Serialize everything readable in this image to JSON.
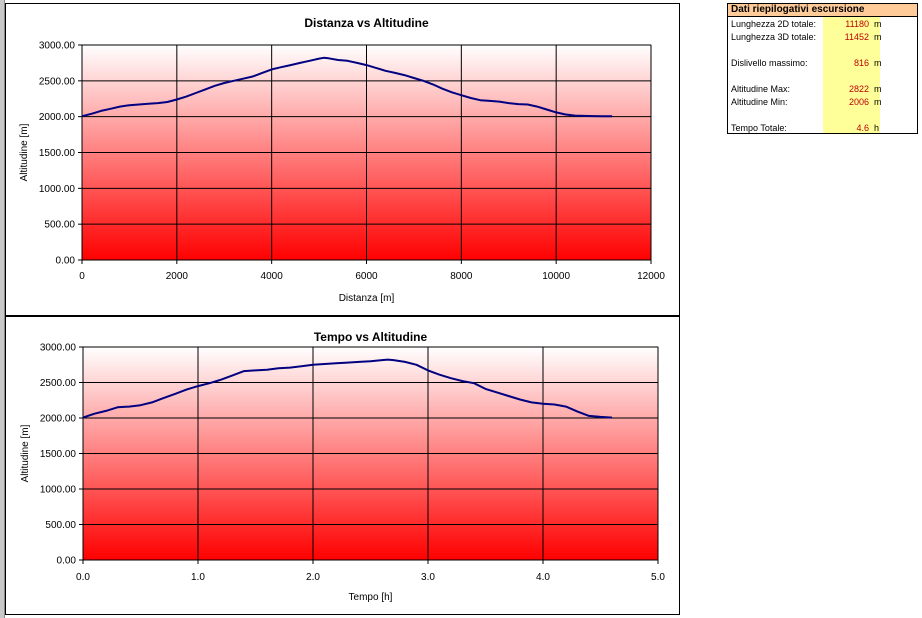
{
  "chart_data": [
    {
      "type": "line",
      "title": "Distanza vs Altitudine",
      "xlabel": "Distanza [m]",
      "ylabel": "Altitudine [m]",
      "xlim": [
        0,
        12000
      ],
      "ylim": [
        0,
        3000
      ],
      "x_ticks": [
        "0",
        "2000",
        "4000",
        "6000",
        "8000",
        "10000",
        "12000"
      ],
      "y_ticks": [
        "0.00",
        "500.00",
        "1000.00",
        "1500.00",
        "2000.00",
        "2500.00",
        "3000.00"
      ],
      "grid": true,
      "series": [
        {
          "x": [
            0,
            200,
            400,
            600,
            800,
            1000,
            1200,
            1400,
            1600,
            1800,
            2000,
            2200,
            2400,
            2600,
            2800,
            3000,
            3200,
            3400,
            3600,
            3800,
            4000,
            4200,
            4400,
            4600,
            4800,
            5000,
            5100,
            5200,
            5400,
            5600,
            5800,
            6000,
            6200,
            6400,
            6600,
            6800,
            7000,
            7200,
            7400,
            7600,
            7800,
            8000,
            8200,
            8400,
            8600,
            8800,
            9000,
            9200,
            9400,
            9600,
            9800,
            10000,
            10200,
            10400,
            10600,
            10800,
            11000,
            11180
          ],
          "y": [
            2006,
            2040,
            2080,
            2110,
            2140,
            2160,
            2170,
            2180,
            2190,
            2205,
            2240,
            2280,
            2330,
            2380,
            2430,
            2470,
            2500,
            2530,
            2560,
            2610,
            2660,
            2690,
            2720,
            2750,
            2780,
            2810,
            2822,
            2815,
            2790,
            2780,
            2750,
            2720,
            2680,
            2640,
            2610,
            2580,
            2540,
            2500,
            2450,
            2390,
            2340,
            2300,
            2260,
            2230,
            2220,
            2210,
            2190,
            2175,
            2170,
            2140,
            2100,
            2060,
            2030,
            2015,
            2010,
            2008,
            2006,
            2006
          ],
          "color": "#000080"
        }
      ]
    },
    {
      "type": "line",
      "title": "Tempo vs Altitudine",
      "xlabel": "Tempo [h]",
      "ylabel": "Altitudine [m]",
      "xlim": [
        0,
        5
      ],
      "ylim": [
        0,
        3000
      ],
      "x_ticks": [
        "0.0",
        "1.0",
        "2.0",
        "3.0",
        "4.0",
        "5.0"
      ],
      "y_ticks": [
        "0.00",
        "500.00",
        "1000.00",
        "1500.00",
        "2000.00",
        "2500.00",
        "3000.00"
      ],
      "grid": true,
      "series": [
        {
          "x": [
            0,
            0.1,
            0.2,
            0.3,
            0.4,
            0.5,
            0.6,
            0.7,
            0.8,
            0.9,
            1.0,
            1.1,
            1.2,
            1.3,
            1.4,
            1.5,
            1.6,
            1.7,
            1.8,
            1.9,
            2.0,
            2.1,
            2.2,
            2.3,
            2.4,
            2.5,
            2.6,
            2.65,
            2.7,
            2.8,
            2.9,
            3.0,
            3.1,
            3.2,
            3.3,
            3.4,
            3.5,
            3.6,
            3.7,
            3.8,
            3.9,
            4.0,
            4.1,
            4.2,
            4.3,
            4.4,
            4.5,
            4.6
          ],
          "y": [
            2006,
            2060,
            2100,
            2150,
            2160,
            2180,
            2220,
            2280,
            2340,
            2400,
            2450,
            2490,
            2540,
            2600,
            2660,
            2670,
            2680,
            2700,
            2710,
            2730,
            2750,
            2760,
            2770,
            2780,
            2790,
            2800,
            2815,
            2822,
            2815,
            2790,
            2750,
            2670,
            2610,
            2560,
            2520,
            2490,
            2410,
            2360,
            2310,
            2260,
            2220,
            2200,
            2190,
            2160,
            2090,
            2030,
            2015,
            2006
          ],
          "color": "#000080"
        }
      ]
    }
  ],
  "summary": {
    "title": "Dati riepilogativi escursione",
    "rows": [
      {
        "label": "Lunghezza 2D totale:",
        "value": "11180",
        "unit": "m"
      },
      {
        "label": "Lunghezza 3D totale:",
        "value": "11452",
        "unit": "m"
      },
      {
        "label": "Dislivello massimo:",
        "value": "816",
        "unit": "m"
      },
      {
        "label": "Altitudine Max:",
        "value": "2822",
        "unit": "m"
      },
      {
        "label": "Altitudine Min:",
        "value": "2006",
        "unit": "m"
      },
      {
        "label": "Tempo Totale:",
        "value": "4.6",
        "unit": "h"
      }
    ]
  }
}
